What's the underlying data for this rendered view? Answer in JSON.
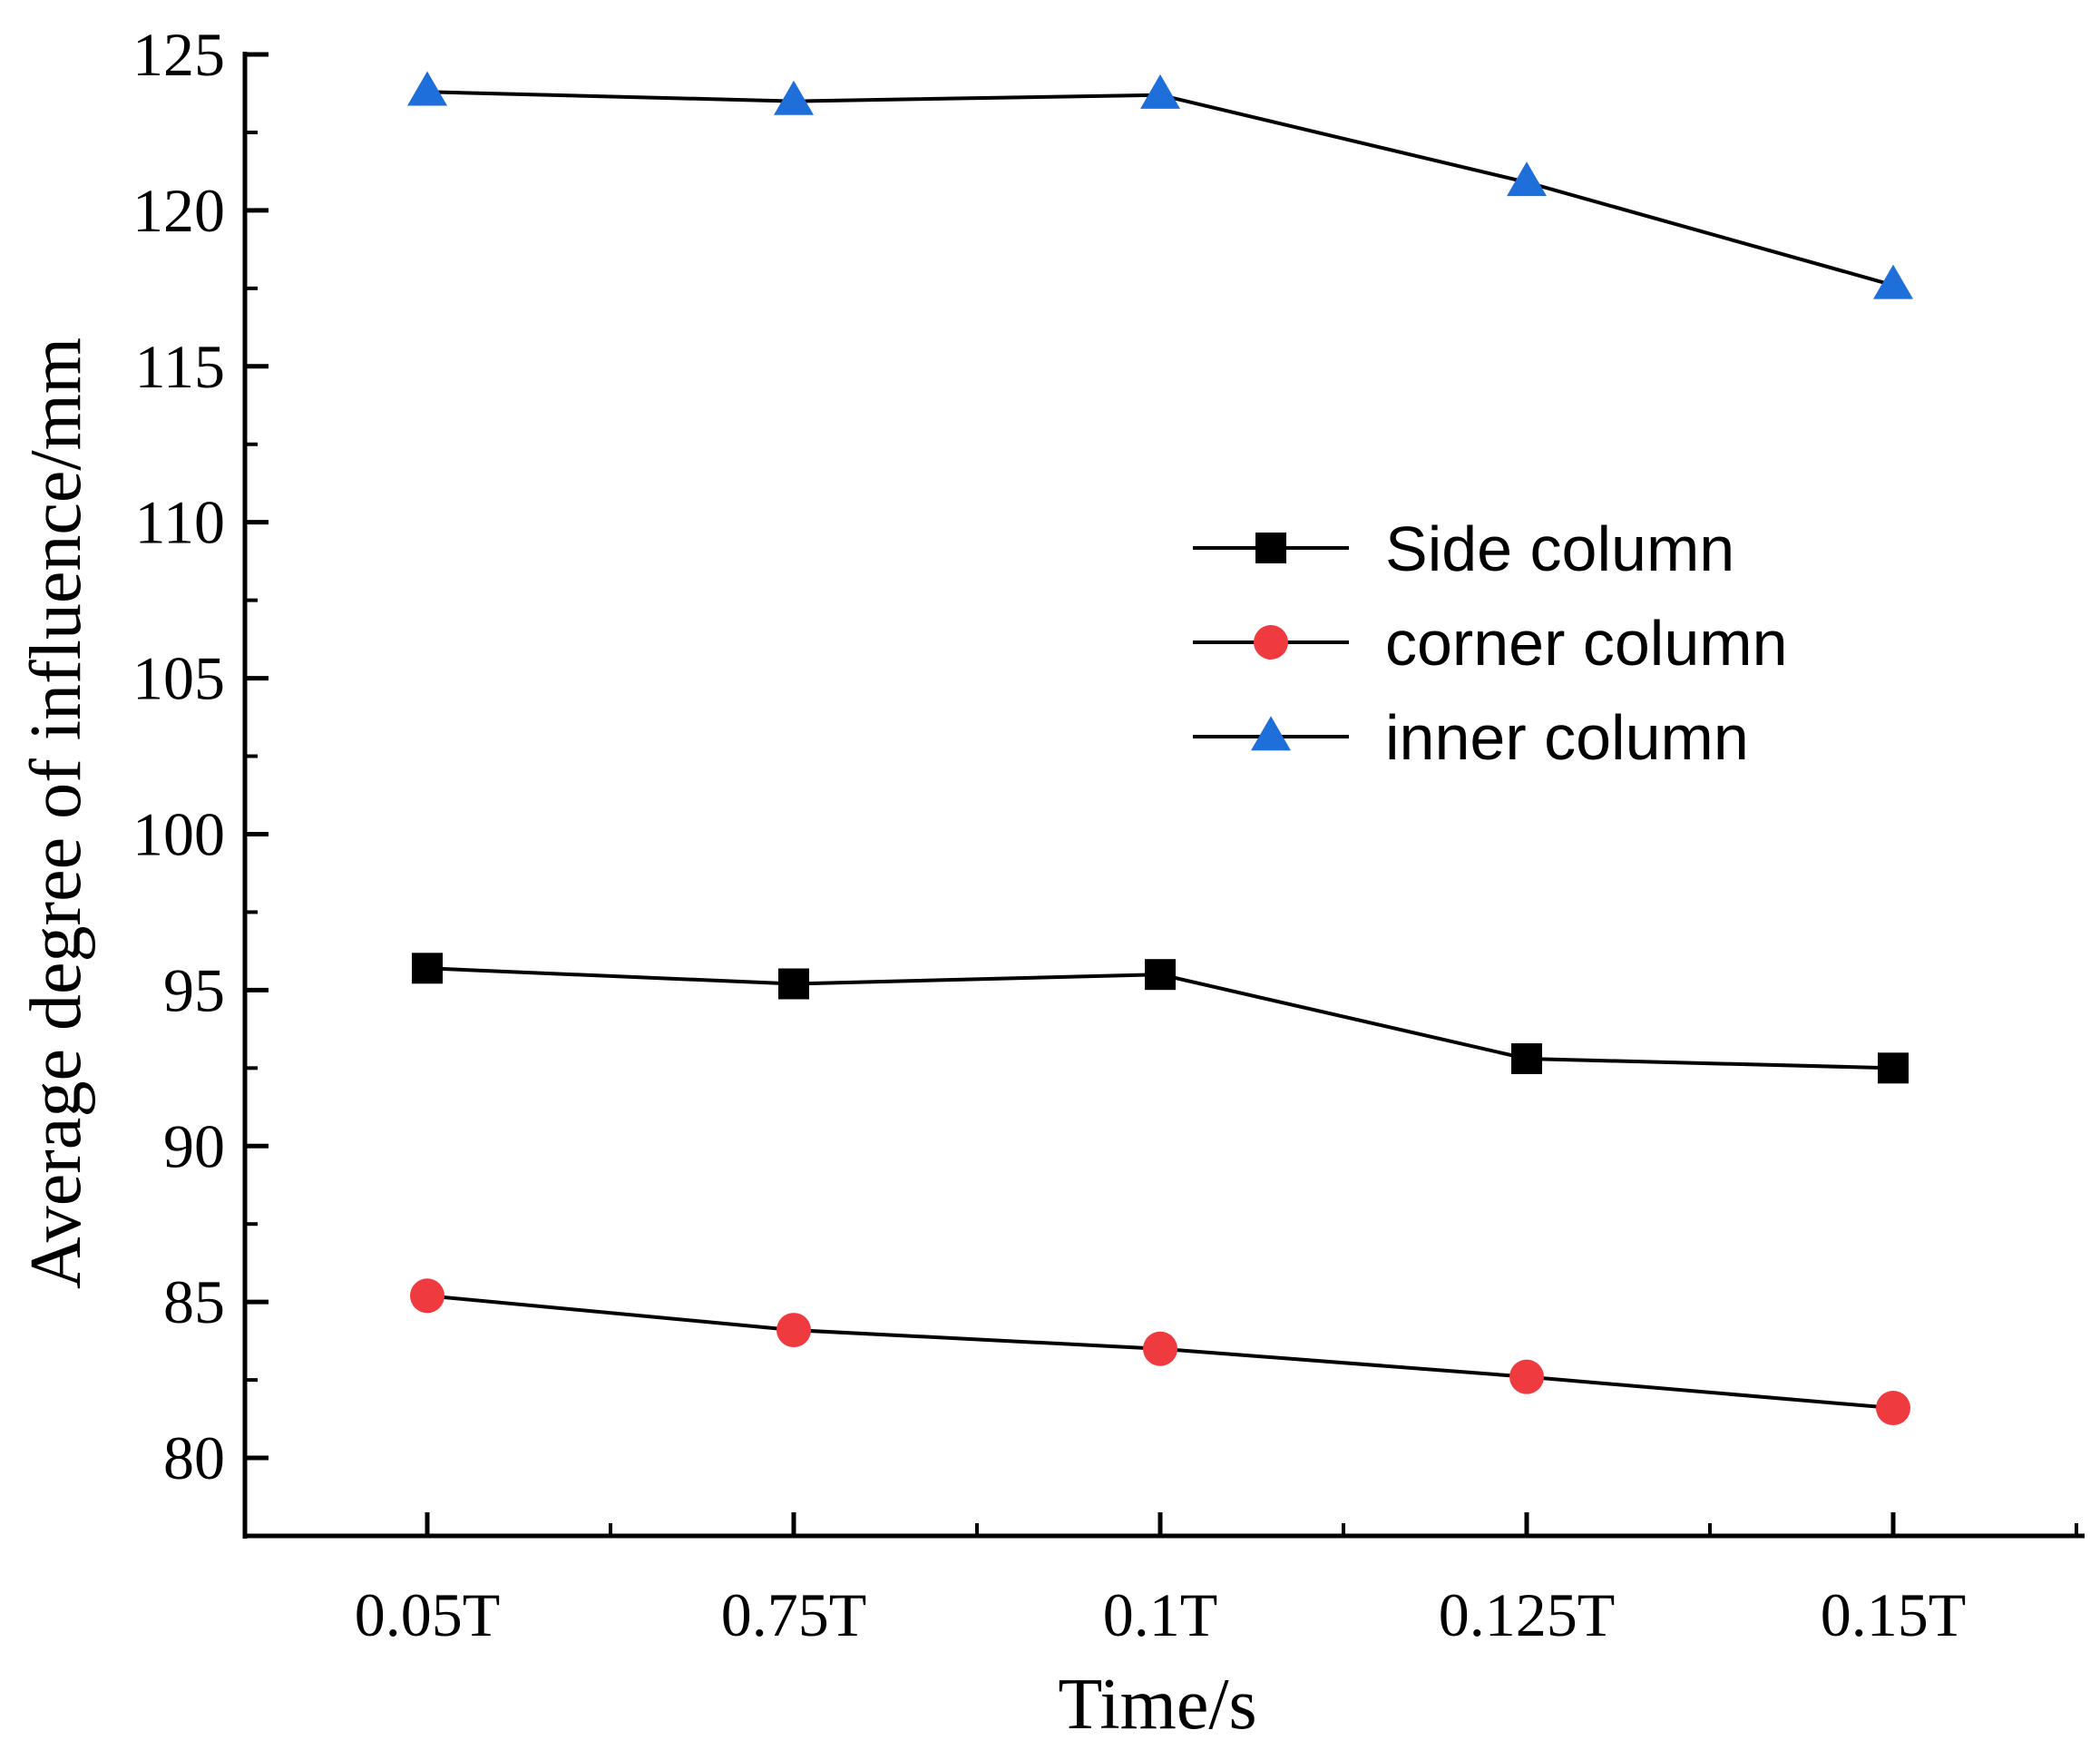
{
  "chart_data": {
    "type": "line",
    "title": "",
    "xlabel": "Time/s",
    "ylabel": "Average degree of influence/mm",
    "categories": [
      "0.05T",
      "0.75T",
      "0.1T",
      "0.125T",
      "0.15T"
    ],
    "ylim": [
      77.5,
      125
    ],
    "y_major_ticks": [
      80,
      85,
      90,
      95,
      100,
      105,
      110,
      115,
      120,
      125
    ],
    "y_tick_labels": [
      "80",
      "85",
      "90",
      "95",
      "100",
      "105",
      "110",
      "115",
      "120",
      "125"
    ],
    "grid": false,
    "legend_position": "right-center",
    "series": [
      {
        "name": "Side column",
        "marker": "square",
        "color": "#000000",
        "values": [
          95.7,
          95.2,
          95.5,
          92.8,
          92.5
        ]
      },
      {
        "name": "corner column",
        "marker": "circle",
        "color": "#ef3b3f",
        "values": [
          85.2,
          84.1,
          83.5,
          82.6,
          81.6
        ]
      },
      {
        "name": "inner column",
        "marker": "triangle",
        "color": "#1f6fdb",
        "values": [
          123.8,
          123.5,
          123.7,
          120.9,
          117.6
        ]
      }
    ]
  }
}
